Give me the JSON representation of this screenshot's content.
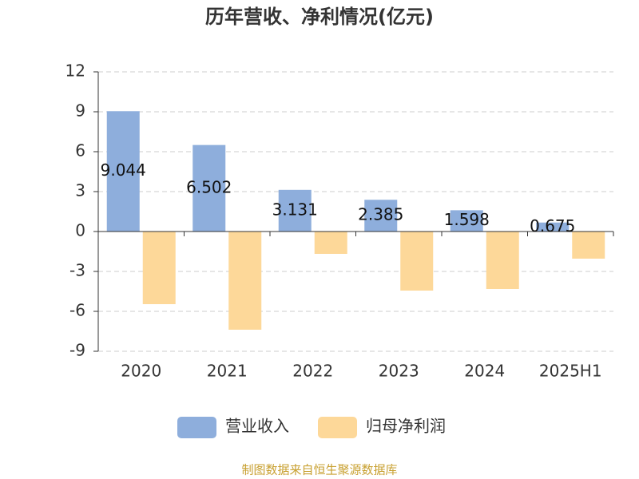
{
  "chart_data": {
    "type": "bar",
    "title": "历年营收、净利情况(亿元)",
    "categories": [
      "2020",
      "2021",
      "2022",
      "2023",
      "2024",
      "2025H1"
    ],
    "series": [
      {
        "name": "营业收入",
        "color": "#8eaedc",
        "values": [
          9.044,
          6.502,
          3.131,
          2.385,
          1.598,
          0.675
        ],
        "show_labels": true
      },
      {
        "name": "归母净利润",
        "color": "#fdd899",
        "values": [
          -5.46,
          -7.38,
          -1.68,
          -4.44,
          -4.32,
          -2.04
        ],
        "show_labels": false
      }
    ],
    "ylim": [
      -9,
      12
    ],
    "yticks": [
      -9,
      -6,
      -3,
      0,
      3,
      6,
      9,
      12
    ],
    "grid": true,
    "legend": "bottom",
    "source": "制图数据来自恒生聚源数据库"
  }
}
